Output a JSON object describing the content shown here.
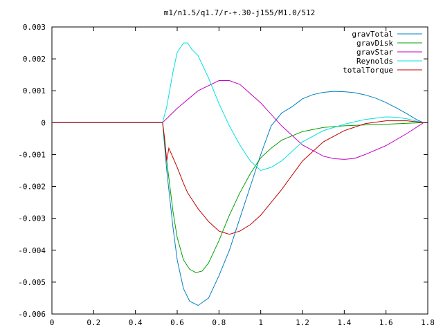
{
  "chart_data": {
    "type": "line",
    "title": "m1/n1.5/q1.7/r-+.30-j155/M1.0/512",
    "xlabel": "",
    "ylabel": "",
    "xlim": [
      0,
      1.8
    ],
    "ylim": [
      -0.006,
      0.003
    ],
    "xticks": [
      0,
      0.2,
      0.4,
      0.6,
      0.8,
      1,
      1.2,
      1.4,
      1.6,
      1.8
    ],
    "xtick_labels": [
      "0",
      "0.2",
      "0.4",
      "0.6",
      "0.8",
      "1",
      "1.2",
      "1.4",
      "1.6",
      "1.8"
    ],
    "yticks": [
      0.003,
      0.002,
      0.001,
      0,
      -0.001,
      -0.002,
      -0.003,
      -0.004,
      -0.005,
      -0.006
    ],
    "ytick_labels": [
      "0.003",
      "0.002",
      "0.001",
      "0",
      "-0.001",
      "-0.002",
      "-0.003",
      "-0.004",
      "-0.005",
      "-0.006"
    ],
    "grid": false,
    "legend_position": "top-right",
    "series": [
      {
        "name": "gravTotal",
        "color": "#0080c0",
        "x": [
          0,
          0.53,
          0.55,
          0.58,
          0.6,
          0.63,
          0.66,
          0.7,
          0.75,
          0.8,
          0.85,
          0.9,
          0.95,
          1.0,
          1.05,
          1.1,
          1.15,
          1.2,
          1.25,
          1.3,
          1.35,
          1.4,
          1.45,
          1.5,
          1.55,
          1.6,
          1.65,
          1.7,
          1.75,
          1.78
        ],
        "y": [
          0,
          0,
          -0.0015,
          -0.0033,
          -0.0043,
          -0.0052,
          -0.0056,
          -0.00573,
          -0.0055,
          -0.0048,
          -0.004,
          -0.003,
          -0.002,
          -0.001,
          -0.0001,
          0.0003,
          0.0005,
          0.00075,
          0.00088,
          0.00095,
          0.00098,
          0.00097,
          0.00094,
          0.00087,
          0.00077,
          0.00063,
          0.00046,
          0.00028,
          8e-05,
          0
        ]
      },
      {
        "name": "gravDisk",
        "color": "#00a000",
        "x": [
          0,
          0.53,
          0.55,
          0.58,
          0.6,
          0.63,
          0.66,
          0.69,
          0.72,
          0.75,
          0.8,
          0.85,
          0.9,
          0.95,
          1.0,
          1.05,
          1.1,
          1.2,
          1.3,
          1.4,
          1.5,
          1.6,
          1.7,
          1.78
        ],
        "y": [
          0,
          0,
          -0.0012,
          -0.0028,
          -0.0036,
          -0.0043,
          -0.0046,
          -0.0047,
          -0.00465,
          -0.0044,
          -0.0037,
          -0.0029,
          -0.0022,
          -0.0016,
          -0.0011,
          -0.0008,
          -0.00055,
          -0.00028,
          -0.00015,
          -0.0001,
          -7e-05,
          -5e-05,
          -2e-05,
          0
        ]
      },
      {
        "name": "gravStar",
        "color": "#c000c0",
        "x": [
          0,
          0.53,
          0.6,
          0.7,
          0.8,
          0.85,
          0.9,
          1.0,
          1.1,
          1.2,
          1.3,
          1.35,
          1.4,
          1.45,
          1.5,
          1.6,
          1.7,
          1.78
        ],
        "y": [
          0,
          0,
          0.00045,
          0.001,
          0.00132,
          0.00132,
          0.0012,
          0.00062,
          -0.0001,
          -0.0007,
          -0.00105,
          -0.00113,
          -0.00115,
          -0.00112,
          -0.001,
          -0.00072,
          -0.00034,
          0
        ]
      },
      {
        "name": "Reynolds",
        "color": "#00e0e0",
        "x": [
          0,
          0.53,
          0.55,
          0.58,
          0.6,
          0.63,
          0.65,
          0.67,
          0.7,
          0.75,
          0.8,
          0.85,
          0.9,
          0.95,
          1.0,
          1.05,
          1.1,
          1.2,
          1.3,
          1.4,
          1.5,
          1.6,
          1.65,
          1.7,
          1.75,
          1.78
        ],
        "y": [
          0,
          0,
          0.0005,
          0.0016,
          0.0022,
          0.0025,
          0.0025,
          0.0023,
          0.0021,
          0.0014,
          0.0006,
          -0.0001,
          -0.0007,
          -0.0012,
          -0.0015,
          -0.0014,
          -0.0012,
          -0.0006,
          -0.00025,
          -5e-05,
          0.0001,
          0.00018,
          0.00017,
          0.00012,
          4e-05,
          0
        ]
      },
      {
        "name": "totalTorque",
        "color": "#c00000",
        "x": [
          0,
          0.53,
          0.54,
          0.55,
          0.56,
          0.58,
          0.6,
          0.63,
          0.65,
          0.7,
          0.75,
          0.8,
          0.85,
          0.9,
          0.95,
          1.0,
          1.05,
          1.1,
          1.2,
          1.3,
          1.4,
          1.5,
          1.6,
          1.7,
          1.78
        ],
        "y": [
          0,
          0,
          -0.0005,
          -0.0012,
          -0.0008,
          -0.0011,
          -0.0014,
          -0.0019,
          -0.0022,
          -0.0027,
          -0.0031,
          -0.0034,
          -0.0035,
          -0.0034,
          -0.0032,
          -0.0029,
          -0.0025,
          -0.0021,
          -0.0012,
          -0.0006,
          -0.00025,
          -3e-05,
          6e-05,
          6e-05,
          0
        ]
      }
    ]
  }
}
